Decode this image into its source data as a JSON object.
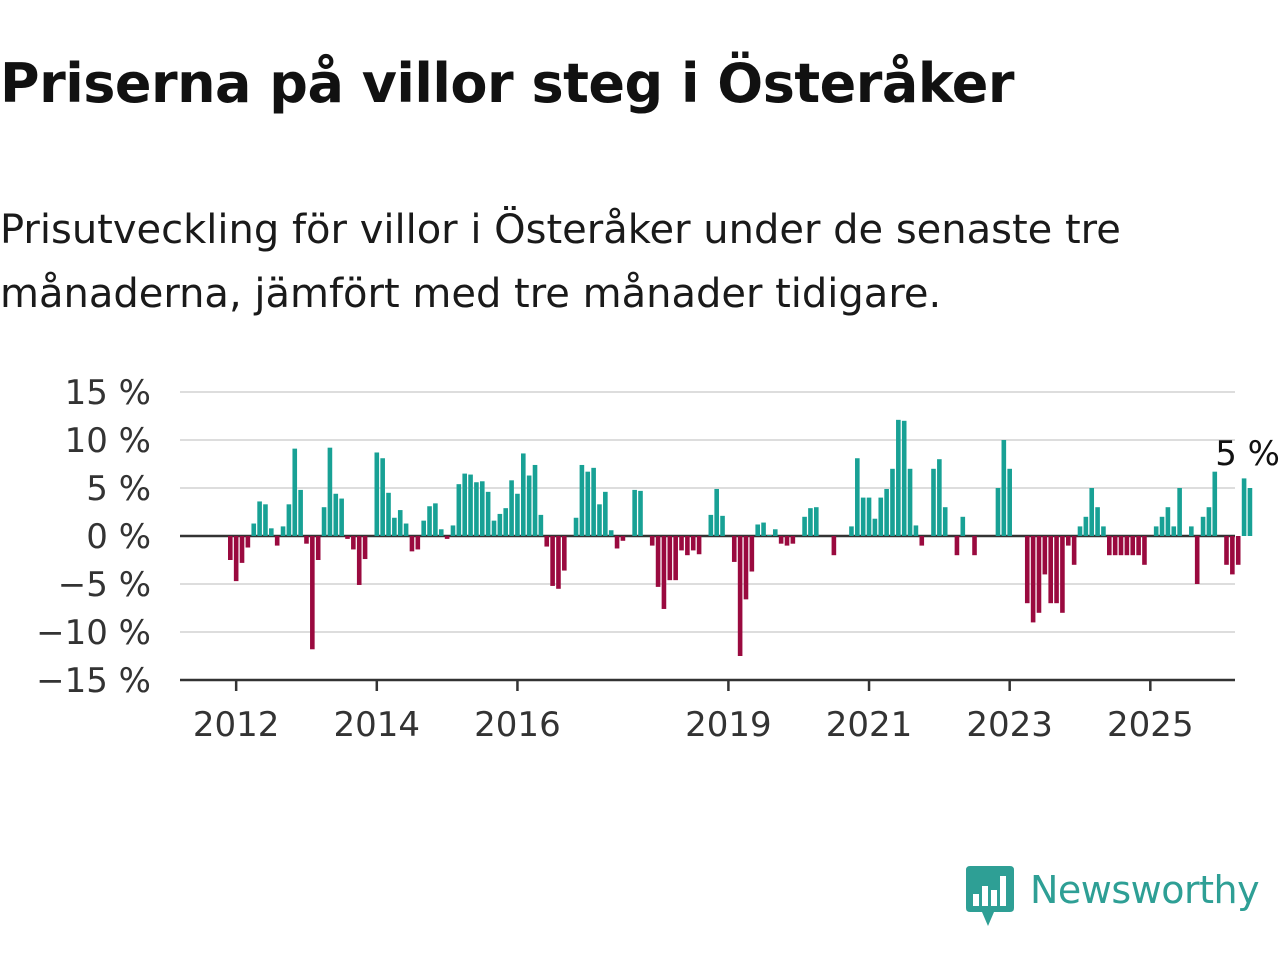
{
  "title": "Priserna på villor steg i Österåker",
  "subtitle": "Prisutveckling för villor i Österåker under de senaste tre månaderna, jämfört med tre månader tidigare.",
  "logo": {
    "text": "Newsworthy",
    "icon": "newsworthy-logo-icon",
    "color": "#2e9f95"
  },
  "colors": {
    "positive": "#18a195",
    "negative": "#9a0a3f",
    "grid": "#dddddd",
    "zero": "#333333"
  },
  "chart_data": {
    "type": "bar",
    "title": "",
    "xlabel": "",
    "ylabel": "",
    "ylim": [
      -15,
      15
    ],
    "yticks": [
      15,
      10,
      5,
      0,
      -5,
      -10,
      -15
    ],
    "ytick_labels": [
      "15 %",
      "10 %",
      "5 %",
      "0 %",
      "−5 %",
      "−10 %",
      "−15 %"
    ],
    "xticks": [
      "2012",
      "2014",
      "2016",
      "2019",
      "2021",
      "2023",
      "2025"
    ],
    "x_start": "2011-12",
    "values": [
      -2.5,
      -4.7,
      -2.8,
      -1.2,
      1.3,
      3.6,
      3.3,
      0.8,
      -1.0,
      1.0,
      3.3,
      9.1,
      4.8,
      -0.8,
      -11.8,
      -2.5,
      3.0,
      9.2,
      4.4,
      3.9,
      -0.3,
      -1.4,
      -5.1,
      -2.4,
      0,
      8.7,
      8.1,
      4.5,
      1.9,
      2.7,
      1.3,
      -1.6,
      -1.4,
      1.6,
      3.1,
      3.4,
      0.7,
      -0.3,
      1.1,
      5.4,
      6.5,
      6.4,
      5.6,
      5.7,
      4.6,
      1.6,
      2.3,
      2.9,
      5.8,
      4.4,
      8.6,
      6.3,
      7.4,
      2.2,
      -1.1,
      -5.2,
      -5.5,
      -3.6,
      0,
      1.9,
      7.4,
      6.7,
      7.1,
      3.3,
      4.6,
      0.6,
      -1.3,
      -0.5,
      0,
      4.8,
      4.7,
      0,
      -1.0,
      -5.3,
      -7.6,
      -4.6,
      -4.6,
      -1.5,
      -2.0,
      -1.5,
      -1.9,
      0,
      2.2,
      4.9,
      2.1,
      0,
      -2.7,
      -12.5,
      -6.6,
      -3.7,
      1.2,
      1.4,
      0.1,
      0.7,
      -0.8,
      -1.0,
      -0.8,
      0,
      2.0,
      2.9,
      3.0,
      0,
      0,
      -2.0,
      0,
      0,
      1.0,
      8.1,
      4.0,
      4.0,
      1.8,
      4.0,
      4.9,
      7.0,
      12.1,
      12.0,
      7.0,
      1.1,
      -1.0,
      0,
      7.0,
      8.0,
      3.0,
      0,
      -2.0,
      2.0,
      0,
      -2.0,
      0,
      0,
      0,
      5.0,
      10.0,
      7.0,
      0,
      0,
      -7.0,
      -9.0,
      -8.0,
      -4.0,
      -7.0,
      -7.0,
      -8.0,
      -1.0,
      -3.0,
      1.0,
      2.0,
      5.0,
      3.0,
      1.0,
      -2.0,
      -2.0,
      -2.0,
      -2.0,
      -2.0,
      -2.0,
      -3.0,
      0,
      1.0,
      2.0,
      3.0,
      1.0,
      5.0,
      0,
      1.0,
      -5.0,
      2.0,
      3.0,
      6.7,
      0,
      -3.0,
      -4.0,
      -3.0,
      6.0,
      5.0
    ],
    "annotation": {
      "text": "5 %",
      "value": 5
    }
  }
}
